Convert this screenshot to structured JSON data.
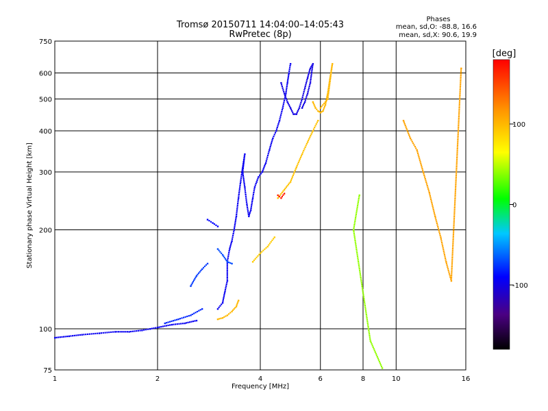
{
  "chart_data": {
    "type": "scatter",
    "title": "Tromsø 20150711 14:04:00–14:05:43",
    "subtitle": "RwPretec (8p)",
    "xlabel": "Frequency [MHz]",
    "ylabel": "Stationary phase Virtual Height [km]",
    "x_scale": "log",
    "y_scale": "log",
    "xlim": [
      1,
      16
    ],
    "ylim": [
      75,
      750
    ],
    "x_ticks": [
      "1",
      "2",
      "4",
      "6",
      "8",
      "10",
      "16"
    ],
    "x_tick_values": [
      1,
      2,
      4,
      6,
      8,
      10,
      16
    ],
    "y_ticks": [
      "75",
      "100",
      "200",
      "300",
      "400",
      "500",
      "600",
      "750"
    ],
    "y_tick_values": [
      75,
      100,
      200,
      300,
      400,
      500,
      600,
      750
    ],
    "grid": true,
    "phase_stats": {
      "header": "Phases",
      "line_o": "mean, sd,O: -88.8, 16.6",
      "line_x": "mean, sd,X:  90.6, 19.9"
    },
    "colorbar": {
      "label": "[deg]",
      "range": [
        -180,
        180
      ],
      "ticks": [
        "100",
        "0",
        "-100"
      ],
      "tick_values": [
        100,
        0,
        -100
      ]
    },
    "traces": [
      {
        "phase": -95,
        "points": [
          [
            1.0,
            94
          ],
          [
            1.1,
            95
          ],
          [
            1.2,
            96
          ],
          [
            1.35,
            97
          ],
          [
            1.5,
            98
          ],
          [
            1.65,
            98
          ],
          [
            1.8,
            99
          ],
          [
            1.9,
            100
          ],
          [
            2.0,
            101
          ],
          [
            2.2,
            103
          ],
          [
            2.4,
            104
          ],
          [
            2.6,
            106
          ]
        ]
      },
      {
        "phase": -80,
        "points": [
          [
            2.1,
            104
          ],
          [
            2.3,
            107
          ],
          [
            2.5,
            110
          ],
          [
            2.7,
            115
          ]
        ]
      },
      {
        "phase": -75,
        "points": [
          [
            2.5,
            135
          ],
          [
            2.6,
            145
          ],
          [
            2.7,
            152
          ],
          [
            2.8,
            158
          ]
        ]
      },
      {
        "phase": -90,
        "points": [
          [
            2.8,
            215
          ],
          [
            2.9,
            210
          ],
          [
            3.0,
            205
          ]
        ]
      },
      {
        "phase": -95,
        "points": [
          [
            3.0,
            115
          ],
          [
            3.1,
            120
          ],
          [
            3.15,
            130
          ],
          [
            3.2,
            140
          ],
          [
            3.2,
            160
          ],
          [
            3.25,
            175
          ],
          [
            3.3,
            185
          ],
          [
            3.35,
            200
          ],
          [
            3.4,
            220
          ],
          [
            3.45,
            250
          ],
          [
            3.5,
            280
          ],
          [
            3.55,
            310
          ],
          [
            3.6,
            340
          ],
          [
            3.55,
            300
          ],
          [
            3.6,
            270
          ],
          [
            3.65,
            240
          ],
          [
            3.7,
            220
          ],
          [
            3.75,
            230
          ],
          [
            3.8,
            250
          ],
          [
            3.85,
            270
          ],
          [
            3.9,
            280
          ],
          [
            3.95,
            290
          ],
          [
            4.05,
            300
          ],
          [
            4.15,
            320
          ],
          [
            4.25,
            350
          ],
          [
            4.35,
            380
          ],
          [
            4.45,
            400
          ],
          [
            4.55,
            430
          ],
          [
            4.65,
            470
          ],
          [
            4.75,
            520
          ],
          [
            4.8,
            560
          ],
          [
            4.85,
            600
          ],
          [
            4.9,
            640
          ]
        ]
      },
      {
        "phase": -100,
        "points": [
          [
            4.6,
            560
          ],
          [
            4.7,
            520
          ],
          [
            4.8,
            490
          ],
          [
            4.9,
            470
          ],
          [
            5.0,
            450
          ],
          [
            5.1,
            450
          ],
          [
            5.2,
            470
          ],
          [
            5.3,
            500
          ],
          [
            5.4,
            540
          ],
          [
            5.5,
            580
          ],
          [
            5.6,
            620
          ],
          [
            5.7,
            640
          ],
          [
            5.6,
            560
          ],
          [
            5.5,
            520
          ],
          [
            5.4,
            490
          ],
          [
            5.3,
            470
          ]
        ]
      },
      {
        "phase": -70,
        "points": [
          [
            3.0,
            175
          ],
          [
            3.1,
            168
          ],
          [
            3.2,
            160
          ],
          [
            3.3,
            158
          ]
        ]
      },
      {
        "phase": 100,
        "points": [
          [
            3.0,
            107
          ],
          [
            3.1,
            108
          ],
          [
            3.2,
            110
          ],
          [
            3.3,
            113
          ],
          [
            3.4,
            117
          ],
          [
            3.45,
            122
          ]
        ]
      },
      {
        "phase": 90,
        "points": [
          [
            3.8,
            160
          ],
          [
            4.0,
            170
          ],
          [
            4.2,
            178
          ],
          [
            4.4,
            190
          ]
        ]
      },
      {
        "phase": 95,
        "points": [
          [
            4.5,
            250
          ],
          [
            4.7,
            265
          ],
          [
            4.9,
            280
          ],
          [
            5.1,
            310
          ],
          [
            5.3,
            340
          ],
          [
            5.5,
            370
          ],
          [
            5.7,
            400
          ],
          [
            5.9,
            430
          ]
        ]
      },
      {
        "phase": 100,
        "points": [
          [
            5.7,
            490
          ],
          [
            5.8,
            470
          ],
          [
            5.9,
            460
          ],
          [
            6.0,
            455
          ],
          [
            6.1,
            460
          ],
          [
            6.2,
            480
          ],
          [
            6.3,
            520
          ],
          [
            6.4,
            580
          ],
          [
            6.5,
            640
          ],
          [
            6.3,
            500
          ],
          [
            6.0,
            470
          ]
        ]
      },
      {
        "phase": 170,
        "points": [
          [
            4.5,
            255
          ],
          [
            4.6,
            250
          ],
          [
            4.7,
            258
          ]
        ]
      },
      {
        "phase": 110,
        "points": [
          [
            10.5,
            430
          ],
          [
            11,
            380
          ],
          [
            11.5,
            350
          ],
          [
            12,
            300
          ],
          [
            12.5,
            260
          ],
          [
            13,
            220
          ],
          [
            13.5,
            190
          ],
          [
            14,
            160
          ],
          [
            14.5,
            140
          ],
          [
            15.5,
            620
          ]
        ]
      },
      {
        "phase": 40,
        "points": [
          [
            7.8,
            255
          ],
          [
            7.5,
            200
          ],
          [
            8.4,
            92
          ],
          [
            9.1,
            76
          ]
        ]
      }
    ]
  }
}
